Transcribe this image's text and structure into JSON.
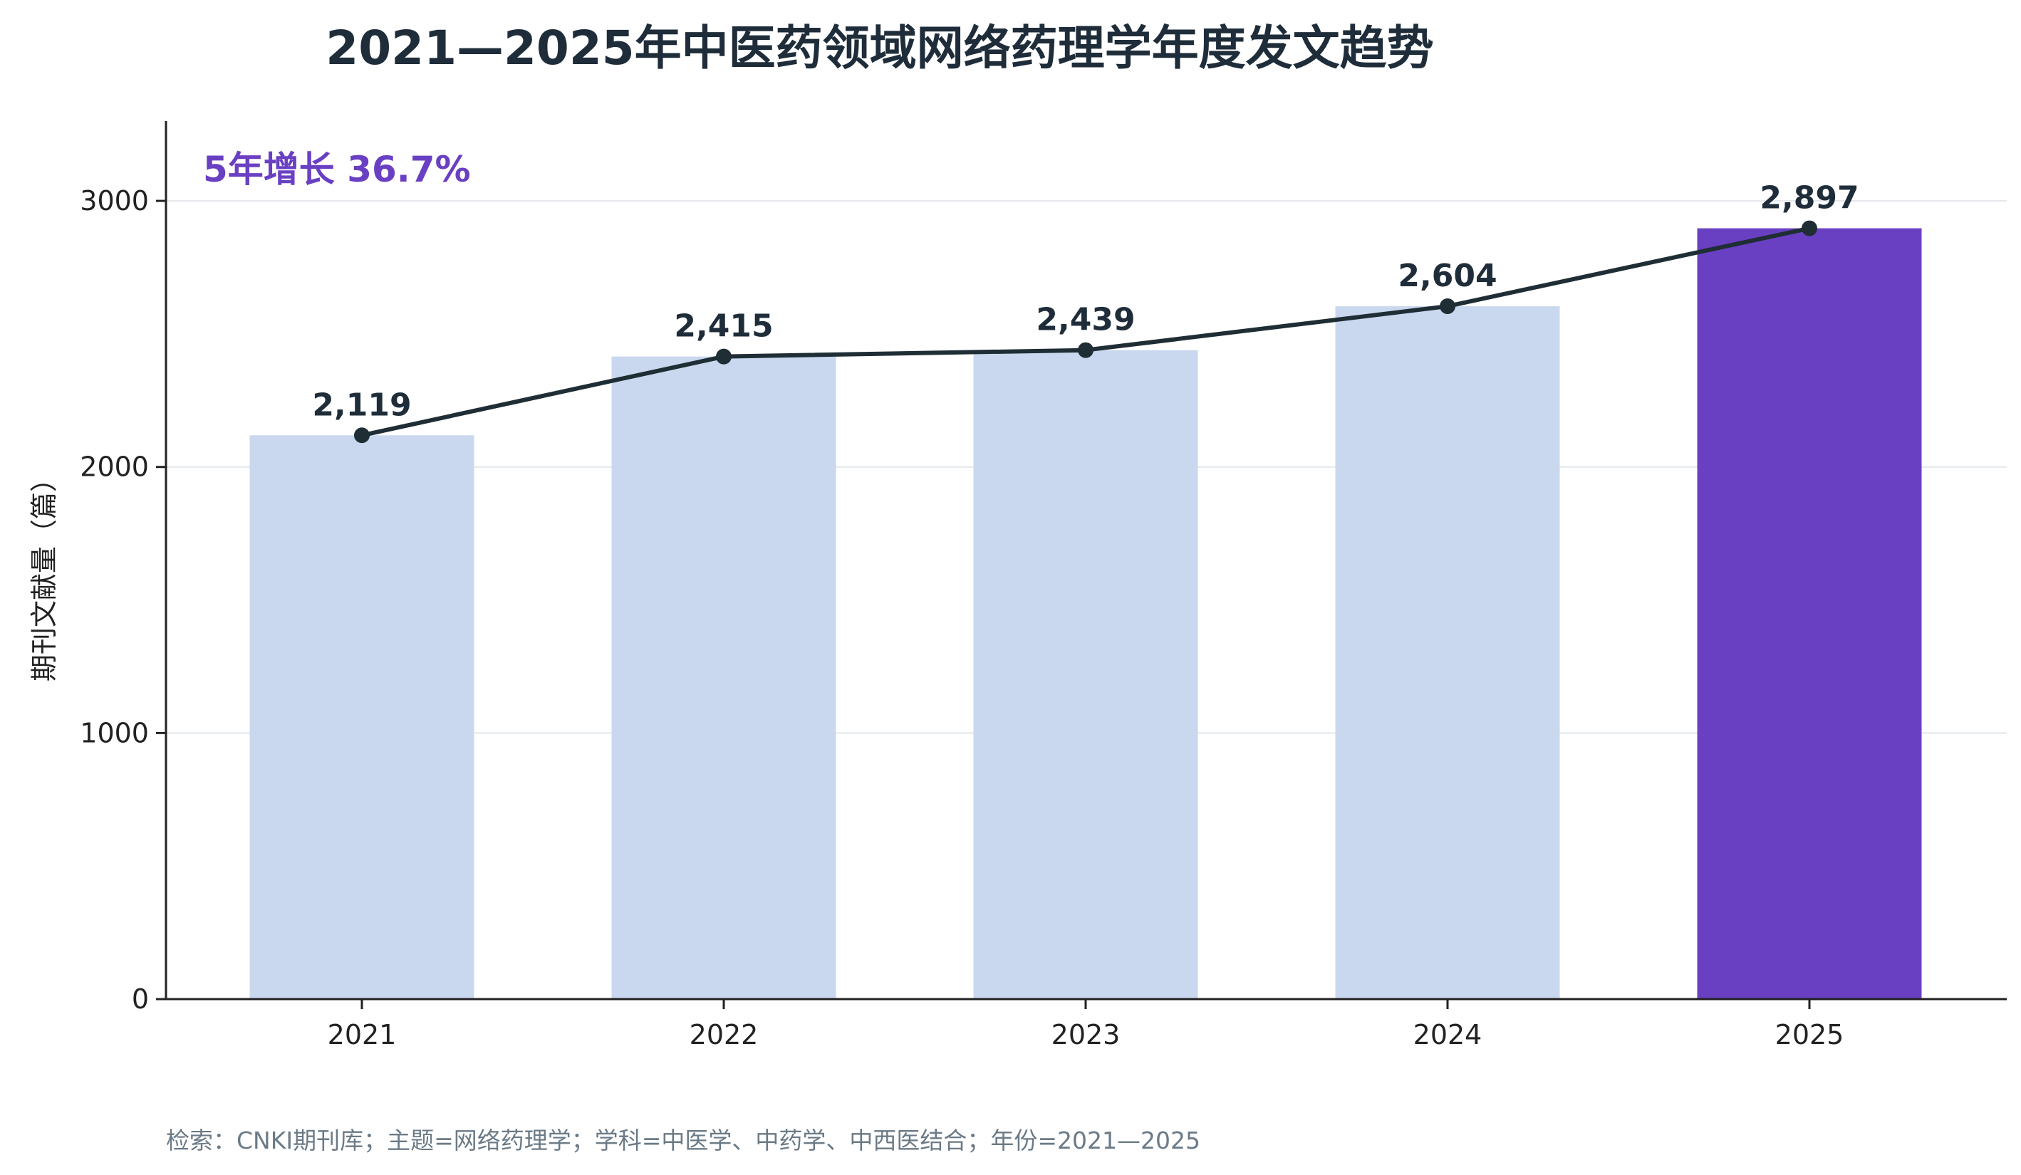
{
  "chart_data": {
    "type": "bar",
    "title": "2021—2025年中医药领域网络药理学年度发文趋势",
    "ylabel": "期刊文献量（篇）",
    "xlabel": "",
    "categories": [
      "2021",
      "2022",
      "2023",
      "2024",
      "2025"
    ],
    "values": [
      2119,
      2415,
      2439,
      2604,
      2897
    ],
    "data_labels": [
      "2,119",
      "2,415",
      "2,439",
      "2,604",
      "2,897"
    ],
    "overlay_line": true,
    "ylim": [
      0,
      3300
    ],
    "yticks": [
      0,
      1000,
      2000,
      3000
    ],
    "grid": true,
    "annotation": "5年增长 36.7%",
    "highlight_index": 4,
    "source_note": "检索：CNKI期刊库；主题=网络药理学；学科=中医学、中药学、中西医结合；年份=2021—2025",
    "colors": {
      "bar": "#c9d8ef",
      "bar_highlight": "#6a40c3",
      "line": "#1f2d35",
      "annotation": "#6a40c3",
      "grid": "#e3e7ec",
      "axis": "#222222"
    }
  }
}
